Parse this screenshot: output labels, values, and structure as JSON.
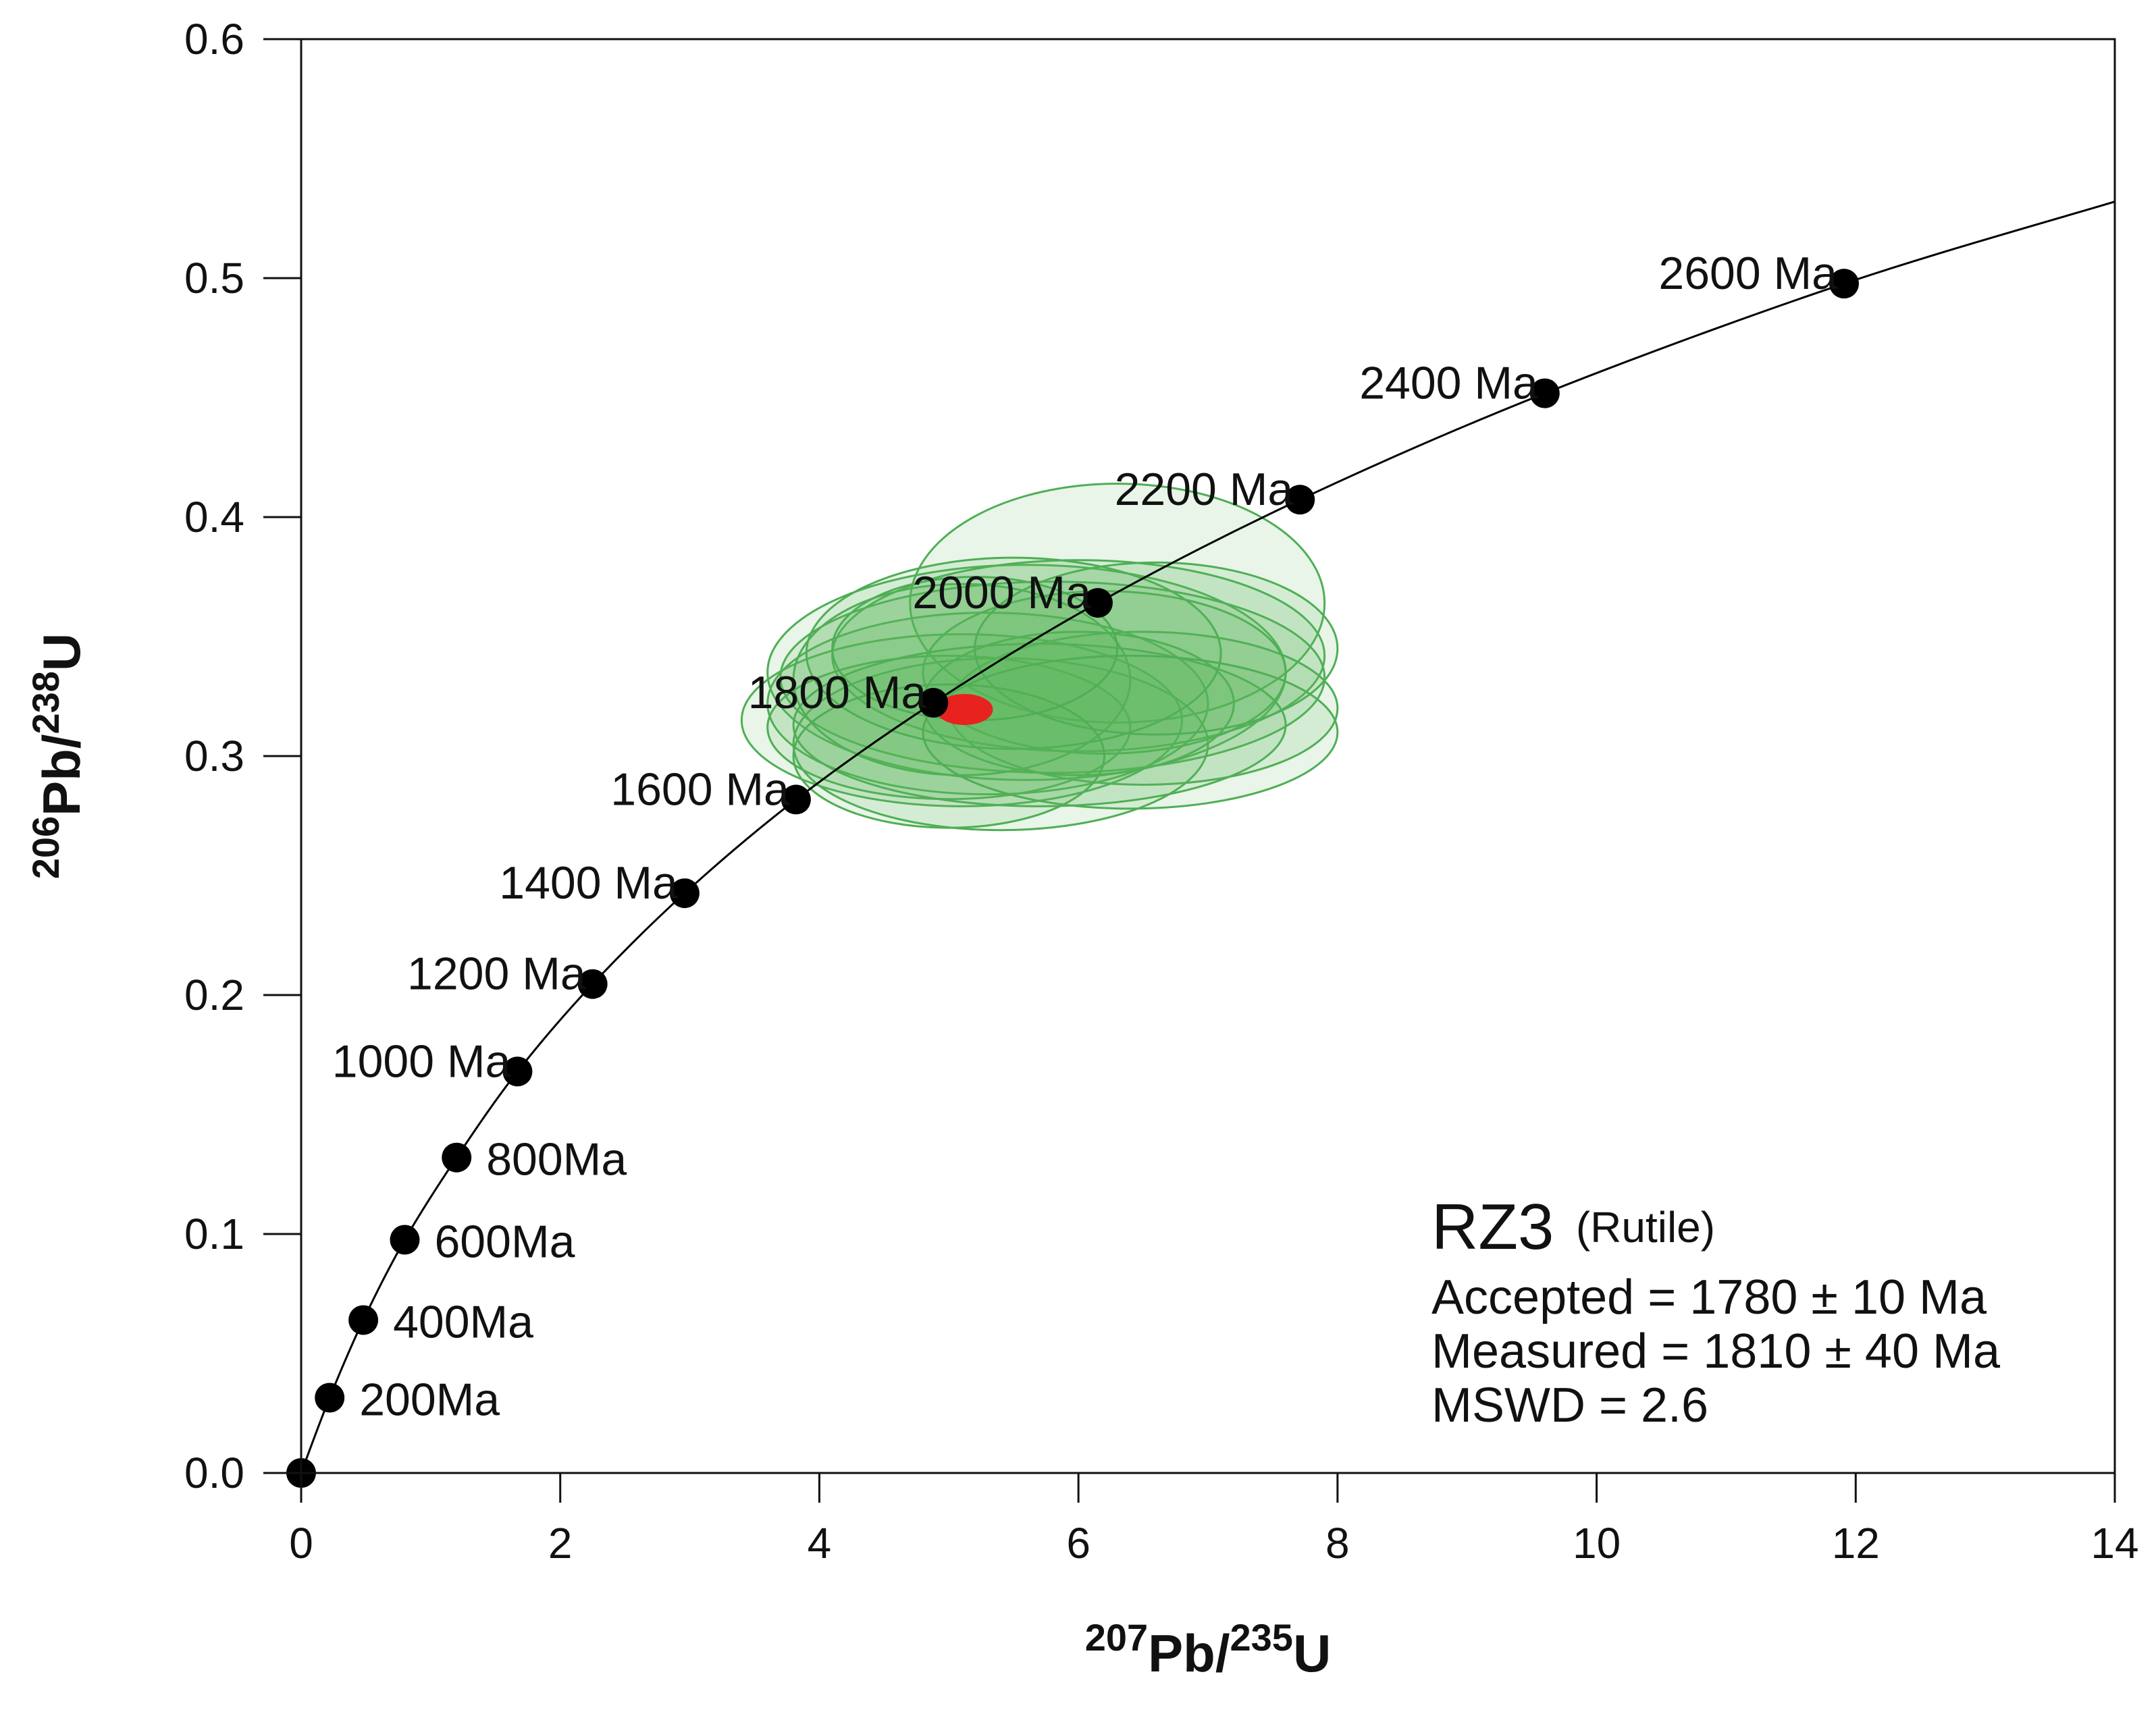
{
  "chart_data": {
    "type": "scatter",
    "subtype": "concordia",
    "xlabel": {
      "prefix": "207",
      "mid": "Pb/",
      "sup": "235",
      "suffix": "U"
    },
    "ylabel": {
      "prefix": "206",
      "mid": "Pb/",
      "sup": "238",
      "suffix": "U"
    },
    "xlim": [
      0,
      14
    ],
    "ylim": [
      0,
      0.6
    ],
    "x_ticks": [
      0,
      2,
      4,
      6,
      8,
      10,
      12,
      14
    ],
    "x_tick_labels": [
      "0",
      "2",
      "4",
      "6",
      "8",
      "10",
      "12",
      "14"
    ],
    "y_ticks": [
      0,
      0.1,
      0.2,
      0.3,
      0.4,
      0.5,
      0.6
    ],
    "y_tick_labels": [
      "0.0",
      "0.1",
      "0.2",
      "0.3",
      "0.4",
      "0.5",
      "0.6"
    ],
    "grid": false,
    "concordia_points": [
      {
        "age_ma": 0,
        "x": 0.0,
        "y": 0.0,
        "label": ""
      },
      {
        "age_ma": 200,
        "x": 0.22,
        "y": 0.0315,
        "label": "200Ma"
      },
      {
        "age_ma": 400,
        "x": 0.48,
        "y": 0.064,
        "label": "400Ma"
      },
      {
        "age_ma": 600,
        "x": 0.8,
        "y": 0.0976,
        "label": "600Ma"
      },
      {
        "age_ma": 800,
        "x": 1.2,
        "y": 0.132,
        "label": "800Ma"
      },
      {
        "age_ma": 1000,
        "x": 1.67,
        "y": 0.168,
        "label": "1000 Ma"
      },
      {
        "age_ma": 1200,
        "x": 2.25,
        "y": 0.2046,
        "label": "1200 Ma"
      },
      {
        "age_ma": 1400,
        "x": 2.96,
        "y": 0.2426,
        "label": "1400 Ma"
      },
      {
        "age_ma": 1600,
        "x": 3.82,
        "y": 0.2818,
        "label": "1600 Ma"
      },
      {
        "age_ma": 1800,
        "x": 4.88,
        "y": 0.3223,
        "label": "1800 Ma"
      },
      {
        "age_ma": 2000,
        "x": 6.15,
        "y": 0.3641,
        "label": "2000 Ma"
      },
      {
        "age_ma": 2200,
        "x": 7.71,
        "y": 0.4073,
        "label": "2200 Ma"
      },
      {
        "age_ma": 2400,
        "x": 9.6,
        "y": 0.4518,
        "label": "2400 Ma"
      },
      {
        "age_ma": 2600,
        "x": 11.91,
        "y": 0.4977,
        "label": "2600 Ma"
      }
    ],
    "concordia_curve_end": {
      "x": 14.0,
      "y": 0.532
    },
    "error_ellipses": [
      {
        "cx": 5.1,
        "cy": 0.315,
        "rx": 1.7,
        "ry": 0.036
      },
      {
        "cx": 5.6,
        "cy": 0.335,
        "rx": 2.0,
        "ry": 0.045
      },
      {
        "cx": 6.3,
        "cy": 0.364,
        "rx": 1.6,
        "ry": 0.05
      },
      {
        "cx": 6.0,
        "cy": 0.342,
        "rx": 1.9,
        "ry": 0.04
      },
      {
        "cx": 5.3,
        "cy": 0.322,
        "rx": 1.7,
        "ry": 0.038
      },
      {
        "cx": 5.8,
        "cy": 0.333,
        "rx": 2.1,
        "ry": 0.04
      },
      {
        "cx": 6.5,
        "cy": 0.32,
        "rx": 1.5,
        "ry": 0.032
      },
      {
        "cx": 5.0,
        "cy": 0.312,
        "rx": 1.4,
        "ry": 0.03
      },
      {
        "cx": 5.4,
        "cy": 0.305,
        "rx": 1.6,
        "ry": 0.036
      },
      {
        "cx": 6.2,
        "cy": 0.335,
        "rx": 1.4,
        "ry": 0.034
      },
      {
        "cx": 5.1,
        "cy": 0.332,
        "rx": 1.3,
        "ry": 0.04
      },
      {
        "cx": 6.0,
        "cy": 0.322,
        "rx": 1.2,
        "ry": 0.03
      },
      {
        "cx": 5.7,
        "cy": 0.313,
        "rx": 1.9,
        "ry": 0.034
      },
      {
        "cx": 5.5,
        "cy": 0.343,
        "rx": 1.6,
        "ry": 0.04
      },
      {
        "cx": 6.6,
        "cy": 0.345,
        "rx": 1.4,
        "ry": 0.036
      },
      {
        "cx": 5.0,
        "cy": 0.3,
        "rx": 1.2,
        "ry": 0.03
      },
      {
        "cx": 6.4,
        "cy": 0.31,
        "rx": 1.6,
        "ry": 0.032
      },
      {
        "cx": 5.2,
        "cy": 0.345,
        "rx": 1.1,
        "ry": 0.03
      }
    ],
    "mean_ellipse": {
      "cx": 5.12,
      "cy": 0.3195,
      "rx": 0.22,
      "ry": 0.0065
    },
    "colors": {
      "ellipse_fill": "#5bb85c",
      "ellipse_stroke": "#4fae55",
      "mean_fill": "#e8231f",
      "curve": "#000000",
      "point": "#000000"
    }
  },
  "annotation": {
    "sample": "RZ3",
    "mineral": "(Rutile)",
    "accepted": "Accepted = 1780 ± 10 Ma",
    "measured": "Measured = 1810 ± 40 Ma",
    "mswd": "MSWD = 2.6"
  }
}
